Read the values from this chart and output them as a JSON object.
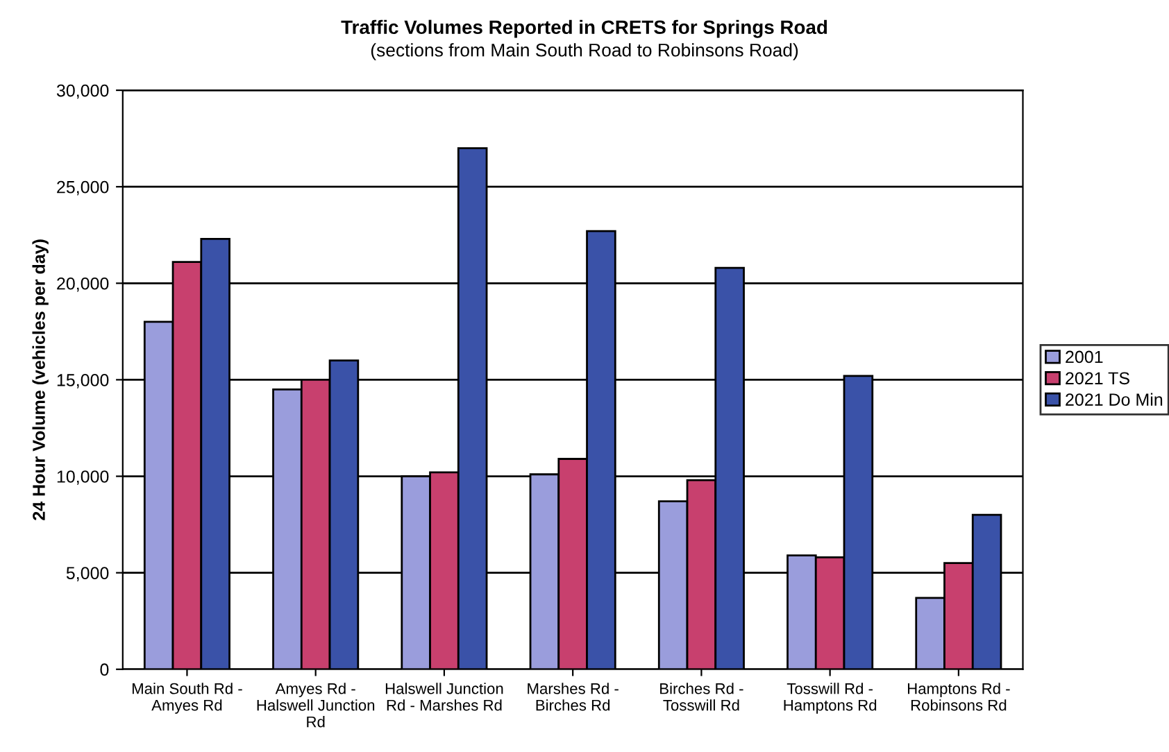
{
  "chart_data": {
    "type": "bar",
    "title": "Traffic Volumes Reported in CRETS for Springs Road",
    "subtitle": "(sections from Main South Road to Robinsons Road)",
    "ylabel": "24 Hour Volume (vehicles per day)",
    "categories": [
      "Main South Rd -\nAmyes Rd",
      "Amyes Rd -\nHalswell Junction\nRd",
      "Halswell Junction\nRd - Marshes Rd",
      "Marshes Rd -\nBirches Rd",
      "Birches Rd -\nTosswill Rd",
      "Tosswill Rd -\nHamptons Rd",
      "Hamptons Rd -\nRobinsons Rd"
    ],
    "series": [
      {
        "name": "2001",
        "color": "#9a9ddc",
        "values": [
          18000,
          14500,
          10000,
          10100,
          8700,
          5900,
          3700
        ]
      },
      {
        "name": "2021 TS",
        "color": "#c8406e",
        "values": [
          21100,
          15000,
          10200,
          10900,
          9800,
          5800,
          5500
        ]
      },
      {
        "name": "2021 Do Min",
        "color": "#3a52a8",
        "values": [
          22300,
          16000,
          27000,
          22700,
          20800,
          15200,
          8000
        ]
      }
    ],
    "ylim": [
      0,
      30000
    ],
    "yticks": [
      {
        "value": 0,
        "label": "0"
      },
      {
        "value": 5000,
        "label": "5,000"
      },
      {
        "value": 10000,
        "label": "10,000"
      },
      {
        "value": 15000,
        "label": "15,000"
      },
      {
        "value": 20000,
        "label": "20,000"
      },
      {
        "value": 25000,
        "label": "25,000"
      },
      {
        "value": 30000,
        "label": "30,000"
      }
    ],
    "grid": "y",
    "legend": "right"
  }
}
